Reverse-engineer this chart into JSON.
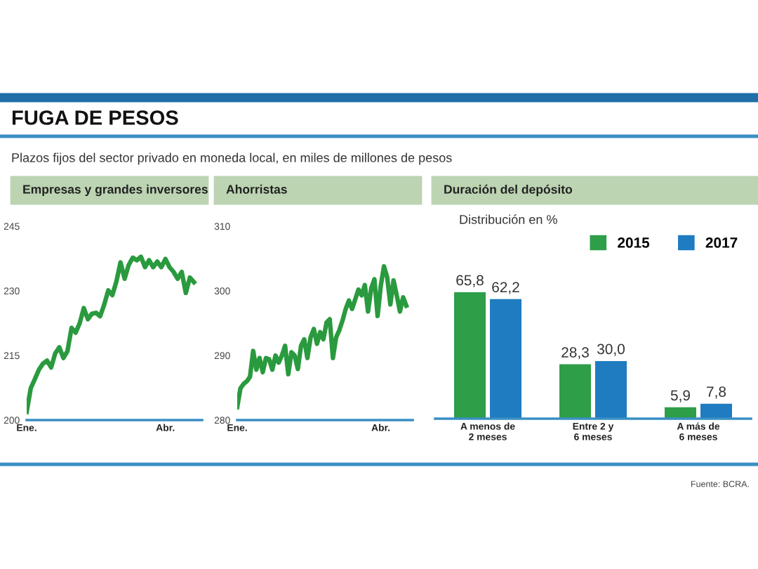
{
  "chart_data": [
    {
      "type": "line",
      "title": "Empresas y grandes inversores",
      "annotations": [
        "FUGA DE PESOS",
        "Plazos fijos del sector privado en moneda local, en miles de millones de pesos"
      ],
      "categories": [
        "Ene.",
        null,
        null,
        null,
        null,
        null,
        null,
        null,
        null,
        null,
        null,
        null,
        null,
        null,
        null,
        null,
        null,
        null,
        null,
        null,
        null,
        null,
        null,
        null,
        null,
        null,
        null,
        null,
        null,
        null,
        null,
        null,
        null,
        null,
        "Abr.",
        null,
        null,
        null,
        null,
        null,
        null,
        null
      ],
      "series": [
        {
          "color": "#2a9a3e",
          "values": [
            201.9,
            207.4,
            209.5,
            211.7,
            213.1,
            213.8,
            212.2,
            215.5,
            216.9,
            214.4,
            216.0,
            221.4,
            220.3,
            222.5,
            226.0,
            223.4,
            224.7,
            224.9,
            224.1,
            226.8,
            230.1,
            229.0,
            232.2,
            236.6,
            232.8,
            236.0,
            237.7,
            237.1,
            237.9,
            235.5,
            237.1,
            235.5,
            236.8,
            235.5,
            237.4,
            235.5,
            234.4,
            232.8,
            234.4,
            229.5,
            233.1,
            232.0
          ]
        }
      ],
      "ylim": [
        200,
        245
      ],
      "yticks": [
        200,
        215,
        230,
        245
      ],
      "grid": false,
      "legend": false
    },
    {
      "type": "line",
      "title": "Ahorristas",
      "categories": [
        "Ene.",
        null,
        null,
        null,
        null,
        null,
        null,
        null,
        null,
        null,
        null,
        null,
        null,
        null,
        null,
        null,
        null,
        null,
        null,
        null,
        null,
        null,
        null,
        null,
        null,
        null,
        null,
        null,
        null,
        null,
        null,
        null,
        null,
        null,
        null,
        null,
        null,
        null,
        null,
        null,
        null,
        null,
        null,
        null,
        null,
        "Abr.",
        null,
        null,
        null,
        null,
        null,
        null,
        null,
        null
      ],
      "series": [
        {
          "color": "#2a9a3e",
          "values": [
            282.0,
            284.9,
            285.6,
            286.0,
            286.7,
            290.7,
            287.8,
            289.6,
            287.4,
            289.6,
            289.4,
            287.8,
            290.0,
            288.9,
            290.0,
            291.5,
            287.1,
            290.5,
            290.0,
            287.9,
            291.5,
            292.5,
            289.6,
            292.8,
            294.1,
            291.8,
            293.6,
            292.5,
            295.1,
            295.6,
            289.6,
            292.8,
            293.9,
            295.4,
            297.2,
            298.5,
            297.2,
            298.7,
            300.2,
            299.3,
            300.9,
            296.8,
            300.4,
            301.8,
            296.1,
            300.8,
            303.8,
            302.1,
            297.9,
            301.6,
            299.3,
            296.8,
            299.0,
            297.7
          ]
        }
      ],
      "ylim": [
        280,
        310
      ],
      "yticks": [
        280,
        290,
        300,
        310
      ],
      "grid": false,
      "legend": false
    },
    {
      "type": "bar",
      "title": "Duración del depósito",
      "subtitle": "Distribución en %",
      "annotations": [
        "Fuente: BCRA."
      ],
      "categories": [
        "A menos de\n2 meses",
        "Entre 2 y\n6 meses",
        "A más de\n6 meses"
      ],
      "series": [
        {
          "name": "2015",
          "color": "#2e9e48",
          "values": [
            65.8,
            28.3,
            5.9
          ],
          "value_labels": [
            "65,8",
            "28,3",
            "5,9"
          ]
        },
        {
          "name": "2017",
          "color": "#1f7cc0",
          "values": [
            62.2,
            30.0,
            7.8
          ],
          "value_labels": [
            "62,2",
            "30,0",
            "7,8"
          ]
        }
      ],
      "legend": "top right",
      "grid": false
    }
  ]
}
